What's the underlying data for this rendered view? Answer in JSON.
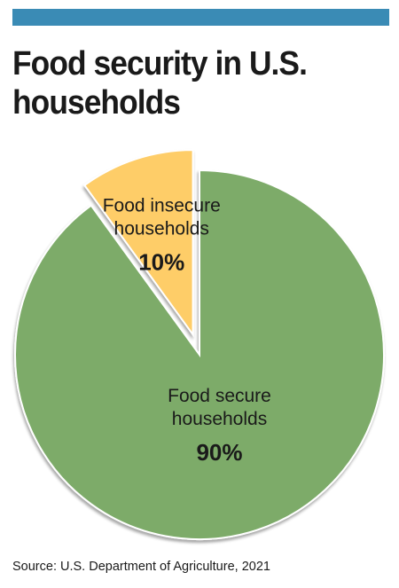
{
  "colors": {
    "top_bar": "#3a8bb5",
    "secure": "#7dab69",
    "insecure": "#fecd68",
    "outline": "#ffffff",
    "shadow": "#9a9a9a"
  },
  "chart_data": {
    "type": "pie",
    "title": "Food security in U.S. households",
    "source": "Source: U.S. Department of Agriculture, 2021",
    "slices": [
      {
        "label_lines": [
          "Food insecure",
          "households"
        ],
        "value": 10,
        "value_label": "10%",
        "color": "#fecd68",
        "exploded": true
      },
      {
        "label_lines": [
          "Food secure",
          "households"
        ],
        "value": 90,
        "value_label": "90%",
        "color": "#7dab69",
        "exploded": false
      }
    ]
  }
}
